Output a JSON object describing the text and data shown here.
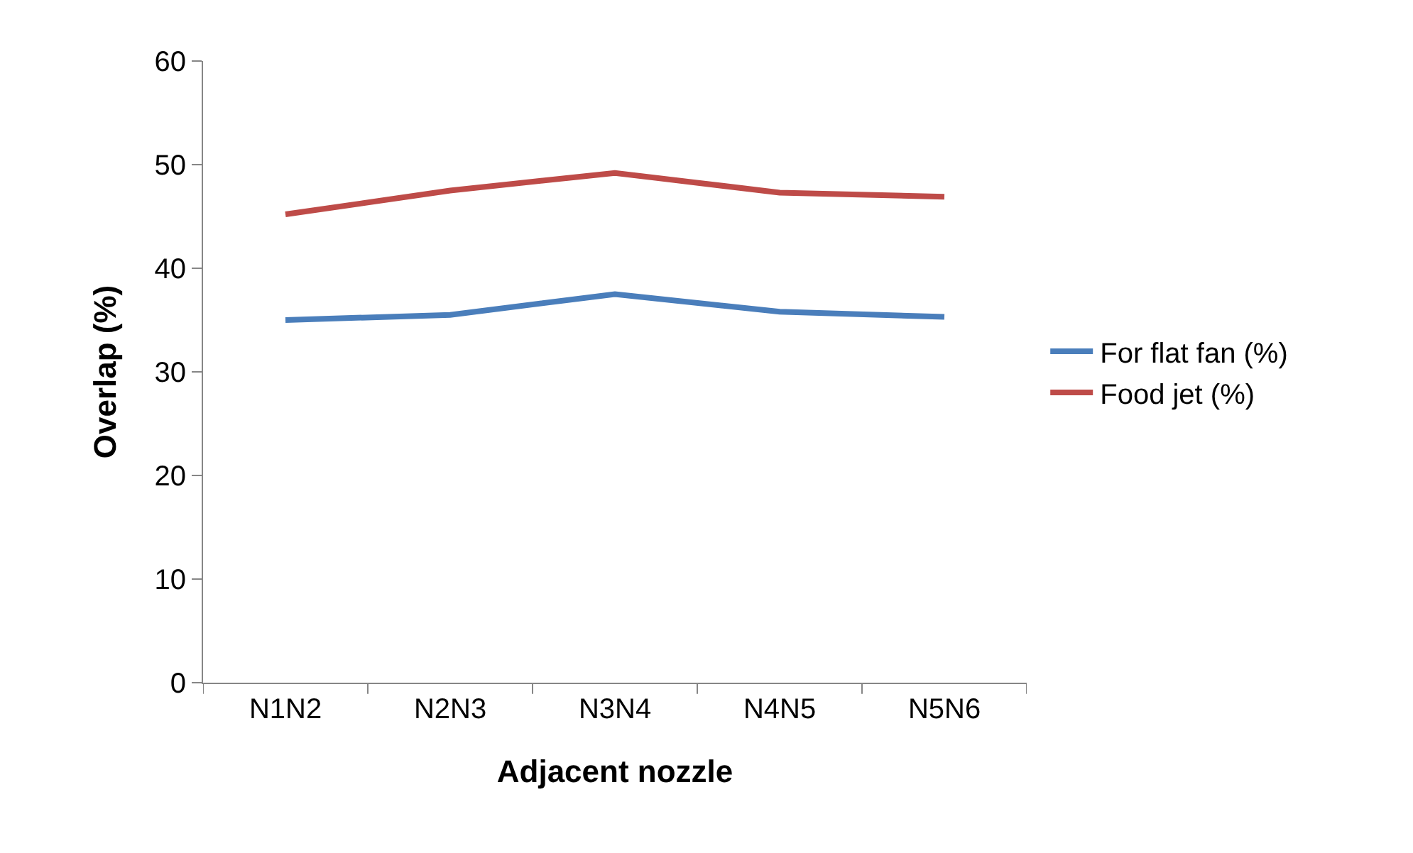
{
  "chart_data": {
    "type": "line",
    "xlabel": "Adjacent nozzle",
    "ylabel": "Overlap (%)",
    "categories": [
      "N1N2",
      "N2N3",
      "N3N4",
      "N4N5",
      "N5N6"
    ],
    "series": [
      {
        "name": "For flat fan (%)",
        "color": "#4a7ebb",
        "values": [
          35.0,
          35.5,
          37.5,
          35.8,
          35.3
        ]
      },
      {
        "name": "Food jet (%)",
        "color": "#be4b48",
        "values": [
          45.2,
          47.5,
          49.2,
          47.3,
          46.9
        ]
      }
    ],
    "ylim": [
      0,
      60
    ],
    "yticks": [
      0,
      10,
      20,
      30,
      40,
      50,
      60
    ],
    "legend": "right",
    "marker": "none",
    "line_style": "solid"
  }
}
